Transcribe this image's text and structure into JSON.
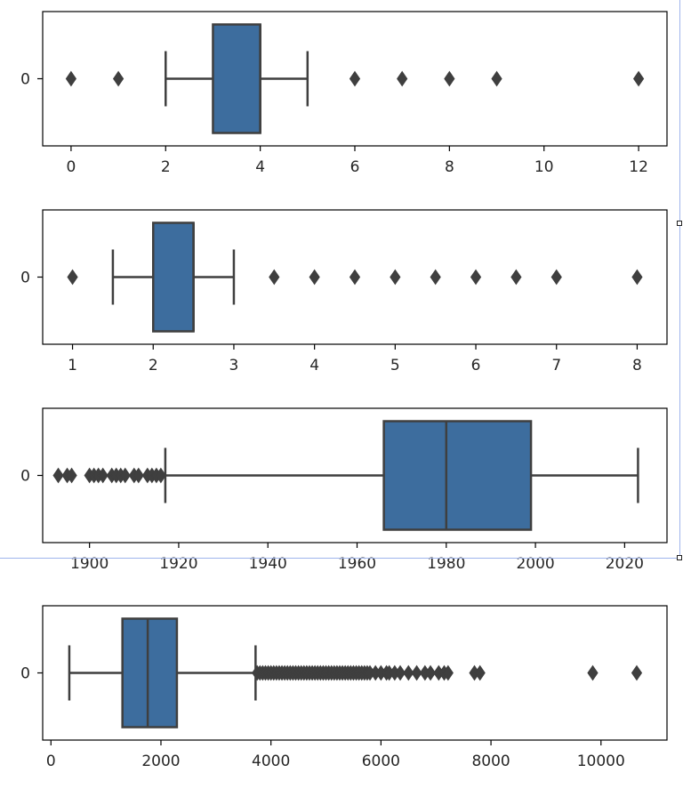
{
  "chart_data": [
    {
      "type": "box",
      "orientation": "horizontal",
      "category_label": "0",
      "xlim": [
        -0.6,
        12.6
      ],
      "ticks": [
        0,
        2,
        4,
        6,
        8,
        10,
        12
      ],
      "whisker_low": 2,
      "q1": 3,
      "median": 4,
      "q3": 4,
      "whisker_high": 5,
      "outliers": [
        0,
        1,
        6,
        7,
        8,
        9,
        12
      ],
      "box_color": "#3d6d9e"
    },
    {
      "type": "box",
      "orientation": "horizontal",
      "category_label": "0",
      "xlim": [
        0.63,
        8.37
      ],
      "ticks": [
        1,
        2,
        3,
        4,
        5,
        6,
        7,
        8
      ],
      "whisker_low": 1.5,
      "q1": 2,
      "median": 2.5,
      "q3": 2.5,
      "whisker_high": 3,
      "outliers": [
        1,
        3.5,
        4,
        4.5,
        5,
        5.5,
        6,
        6.5,
        7,
        8
      ],
      "box_color": "#3d6d9e"
    },
    {
      "type": "box",
      "orientation": "horizontal",
      "category_label": "0",
      "xlim": [
        1889.5,
        2029.5
      ],
      "ticks": [
        1900,
        1920,
        1940,
        1960,
        1980,
        2000,
        2020
      ],
      "whisker_low": 1917,
      "q1": 1966,
      "median": 1980,
      "q3": 1999,
      "whisker_high": 2023,
      "outliers": [
        1893,
        1895,
        1896,
        1900,
        1901,
        1902,
        1903,
        1905,
        1906,
        1907,
        1908,
        1910,
        1911,
        1913,
        1914,
        1915,
        1916
      ],
      "box_color": "#3d6d9e"
    },
    {
      "type": "box",
      "orientation": "horizontal",
      "category_label": "0",
      "xlim": [
        -150,
        11200
      ],
      "ticks": [
        0,
        2000,
        4000,
        6000,
        8000,
        10000
      ],
      "whisker_low": 334,
      "q1": 1300,
      "median": 1760,
      "q3": 2290,
      "whisker_high": 3720,
      "outliers": [
        3750,
        3800,
        3850,
        3900,
        3950,
        4000,
        4050,
        4100,
        4150,
        4200,
        4250,
        4300,
        4350,
        4400,
        4450,
        4500,
        4550,
        4600,
        4650,
        4700,
        4750,
        4800,
        4850,
        4900,
        4950,
        5000,
        5050,
        5100,
        5150,
        5200,
        5250,
        5300,
        5350,
        5400,
        5450,
        5500,
        5550,
        5600,
        5650,
        5700,
        5750,
        5800,
        5900,
        6000,
        6100,
        6150,
        6250,
        6350,
        6500,
        6650,
        6800,
        6900,
        7050,
        7150,
        7220,
        7700,
        7800,
        9850,
        10650
      ],
      "box_color": "#3d6d9e"
    }
  ]
}
